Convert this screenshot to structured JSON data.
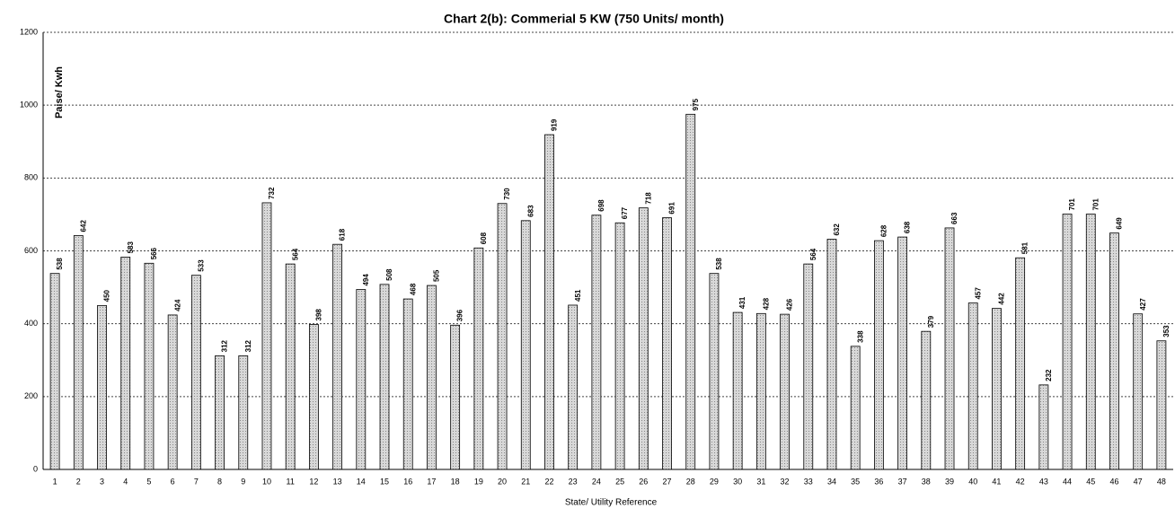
{
  "chart_data": {
    "type": "bar",
    "title": "Chart 2(b): Commerial 5 KW (750 Units/ month)",
    "y_label": "Paise/ Kwh",
    "x_label": "State/ Utility Reference",
    "categories": [
      "1",
      "2",
      "3",
      "4",
      "5",
      "6",
      "7",
      "8",
      "9",
      "10",
      "11",
      "12",
      "13",
      "14",
      "15",
      "16",
      "17",
      "18",
      "19",
      "20",
      "21",
      "22",
      "23",
      "24",
      "25",
      "26",
      "27",
      "28",
      "29",
      "30",
      "31",
      "32",
      "33",
      "34",
      "35",
      "36",
      "37",
      "38",
      "39",
      "40",
      "41",
      "42",
      "43",
      "44",
      "45",
      "46",
      "47",
      "48"
    ],
    "values": [
      538,
      642,
      450,
      583,
      566,
      424,
      533,
      312,
      312,
      732,
      564,
      398,
      618,
      494,
      508,
      468,
      505,
      396,
      608,
      730,
      683,
      919,
      451,
      698,
      677,
      718,
      691,
      975,
      538,
      431,
      428,
      426,
      564,
      632,
      338,
      628,
      638,
      379,
      663,
      457,
      442,
      581,
      232,
      701,
      701,
      649,
      427,
      353
    ],
    "color": "#c8c8c8",
    "ylim": [
      0,
      1200
    ],
    "yticks": [
      0,
      200,
      400,
      600,
      800,
      1000,
      1200
    ],
    "grid": true
  }
}
